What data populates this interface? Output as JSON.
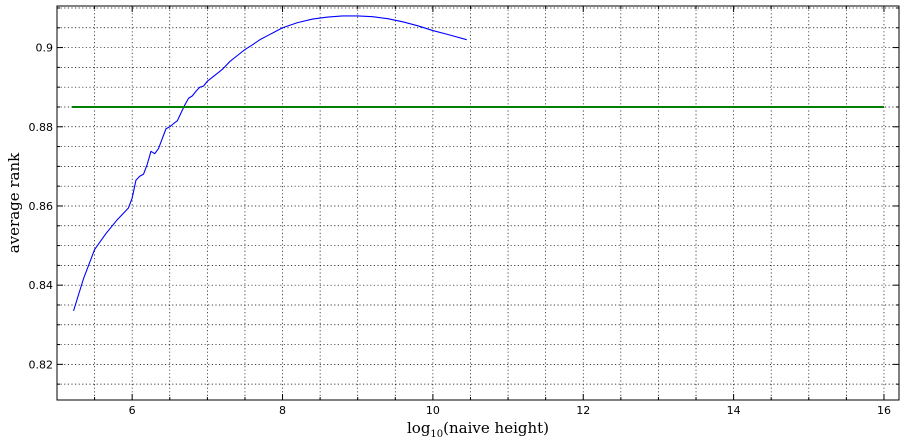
{
  "chart_data": {
    "type": "line",
    "title": "",
    "xlabel": "log",
    "xlabel_sub": "10",
    "xlabel_suffix": "(naive height)",
    "ylabel": "average rank",
    "xlim": [
      5.0,
      16.2
    ],
    "ylim": [
      0.811,
      0.9105
    ],
    "x_ticks": [
      6,
      8,
      10,
      12,
      14,
      16
    ],
    "x_tick_labels": [
      "6",
      "8",
      "10",
      "12",
      "14",
      "16"
    ],
    "y_ticks": [
      0.82,
      0.84,
      0.86,
      0.88,
      0.9
    ],
    "y_tick_labels": [
      "0.82",
      "0.84",
      "0.86",
      "0.88",
      "0.9"
    ],
    "x_minor_step": 0.5,
    "y_minor_step": 0.005,
    "grid": true,
    "series": [
      {
        "color": "#0000ff",
        "x": [
          5.22,
          5.35,
          5.5,
          5.65,
          5.8,
          5.95,
          6.0,
          6.05,
          6.1,
          6.15,
          6.2,
          6.25,
          6.3,
          6.35,
          6.4,
          6.45,
          6.5,
          6.55,
          6.6,
          6.65,
          6.7,
          6.75,
          6.8,
          6.85,
          6.9,
          6.95,
          7.0,
          7.1,
          7.2,
          7.3,
          7.4,
          7.5,
          7.6,
          7.7,
          7.8,
          7.9,
          8.0,
          8.2,
          8.4,
          8.6,
          8.8,
          9.0,
          9.2,
          9.4,
          9.6,
          9.8,
          10.0,
          10.2,
          10.45
        ],
        "y": [
          0.8335,
          0.8415,
          0.849,
          0.853,
          0.8565,
          0.8595,
          0.862,
          0.8665,
          0.8675,
          0.868,
          0.8705,
          0.8738,
          0.8732,
          0.8745,
          0.877,
          0.8795,
          0.88,
          0.8808,
          0.8815,
          0.8835,
          0.8855,
          0.8872,
          0.8878,
          0.889,
          0.89,
          0.8903,
          0.8915,
          0.893,
          0.8945,
          0.8965,
          0.898,
          0.8995,
          0.9007,
          0.902,
          0.903,
          0.904,
          0.905,
          0.9063,
          0.9072,
          0.9077,
          0.908,
          0.908,
          0.9078,
          0.9073,
          0.9065,
          0.9055,
          0.9043,
          0.9033,
          0.902
        ]
      },
      {
        "color": "#007f00",
        "x": [
          5.2,
          16.0
        ],
        "y": [
          0.885,
          0.885
        ]
      }
    ]
  }
}
